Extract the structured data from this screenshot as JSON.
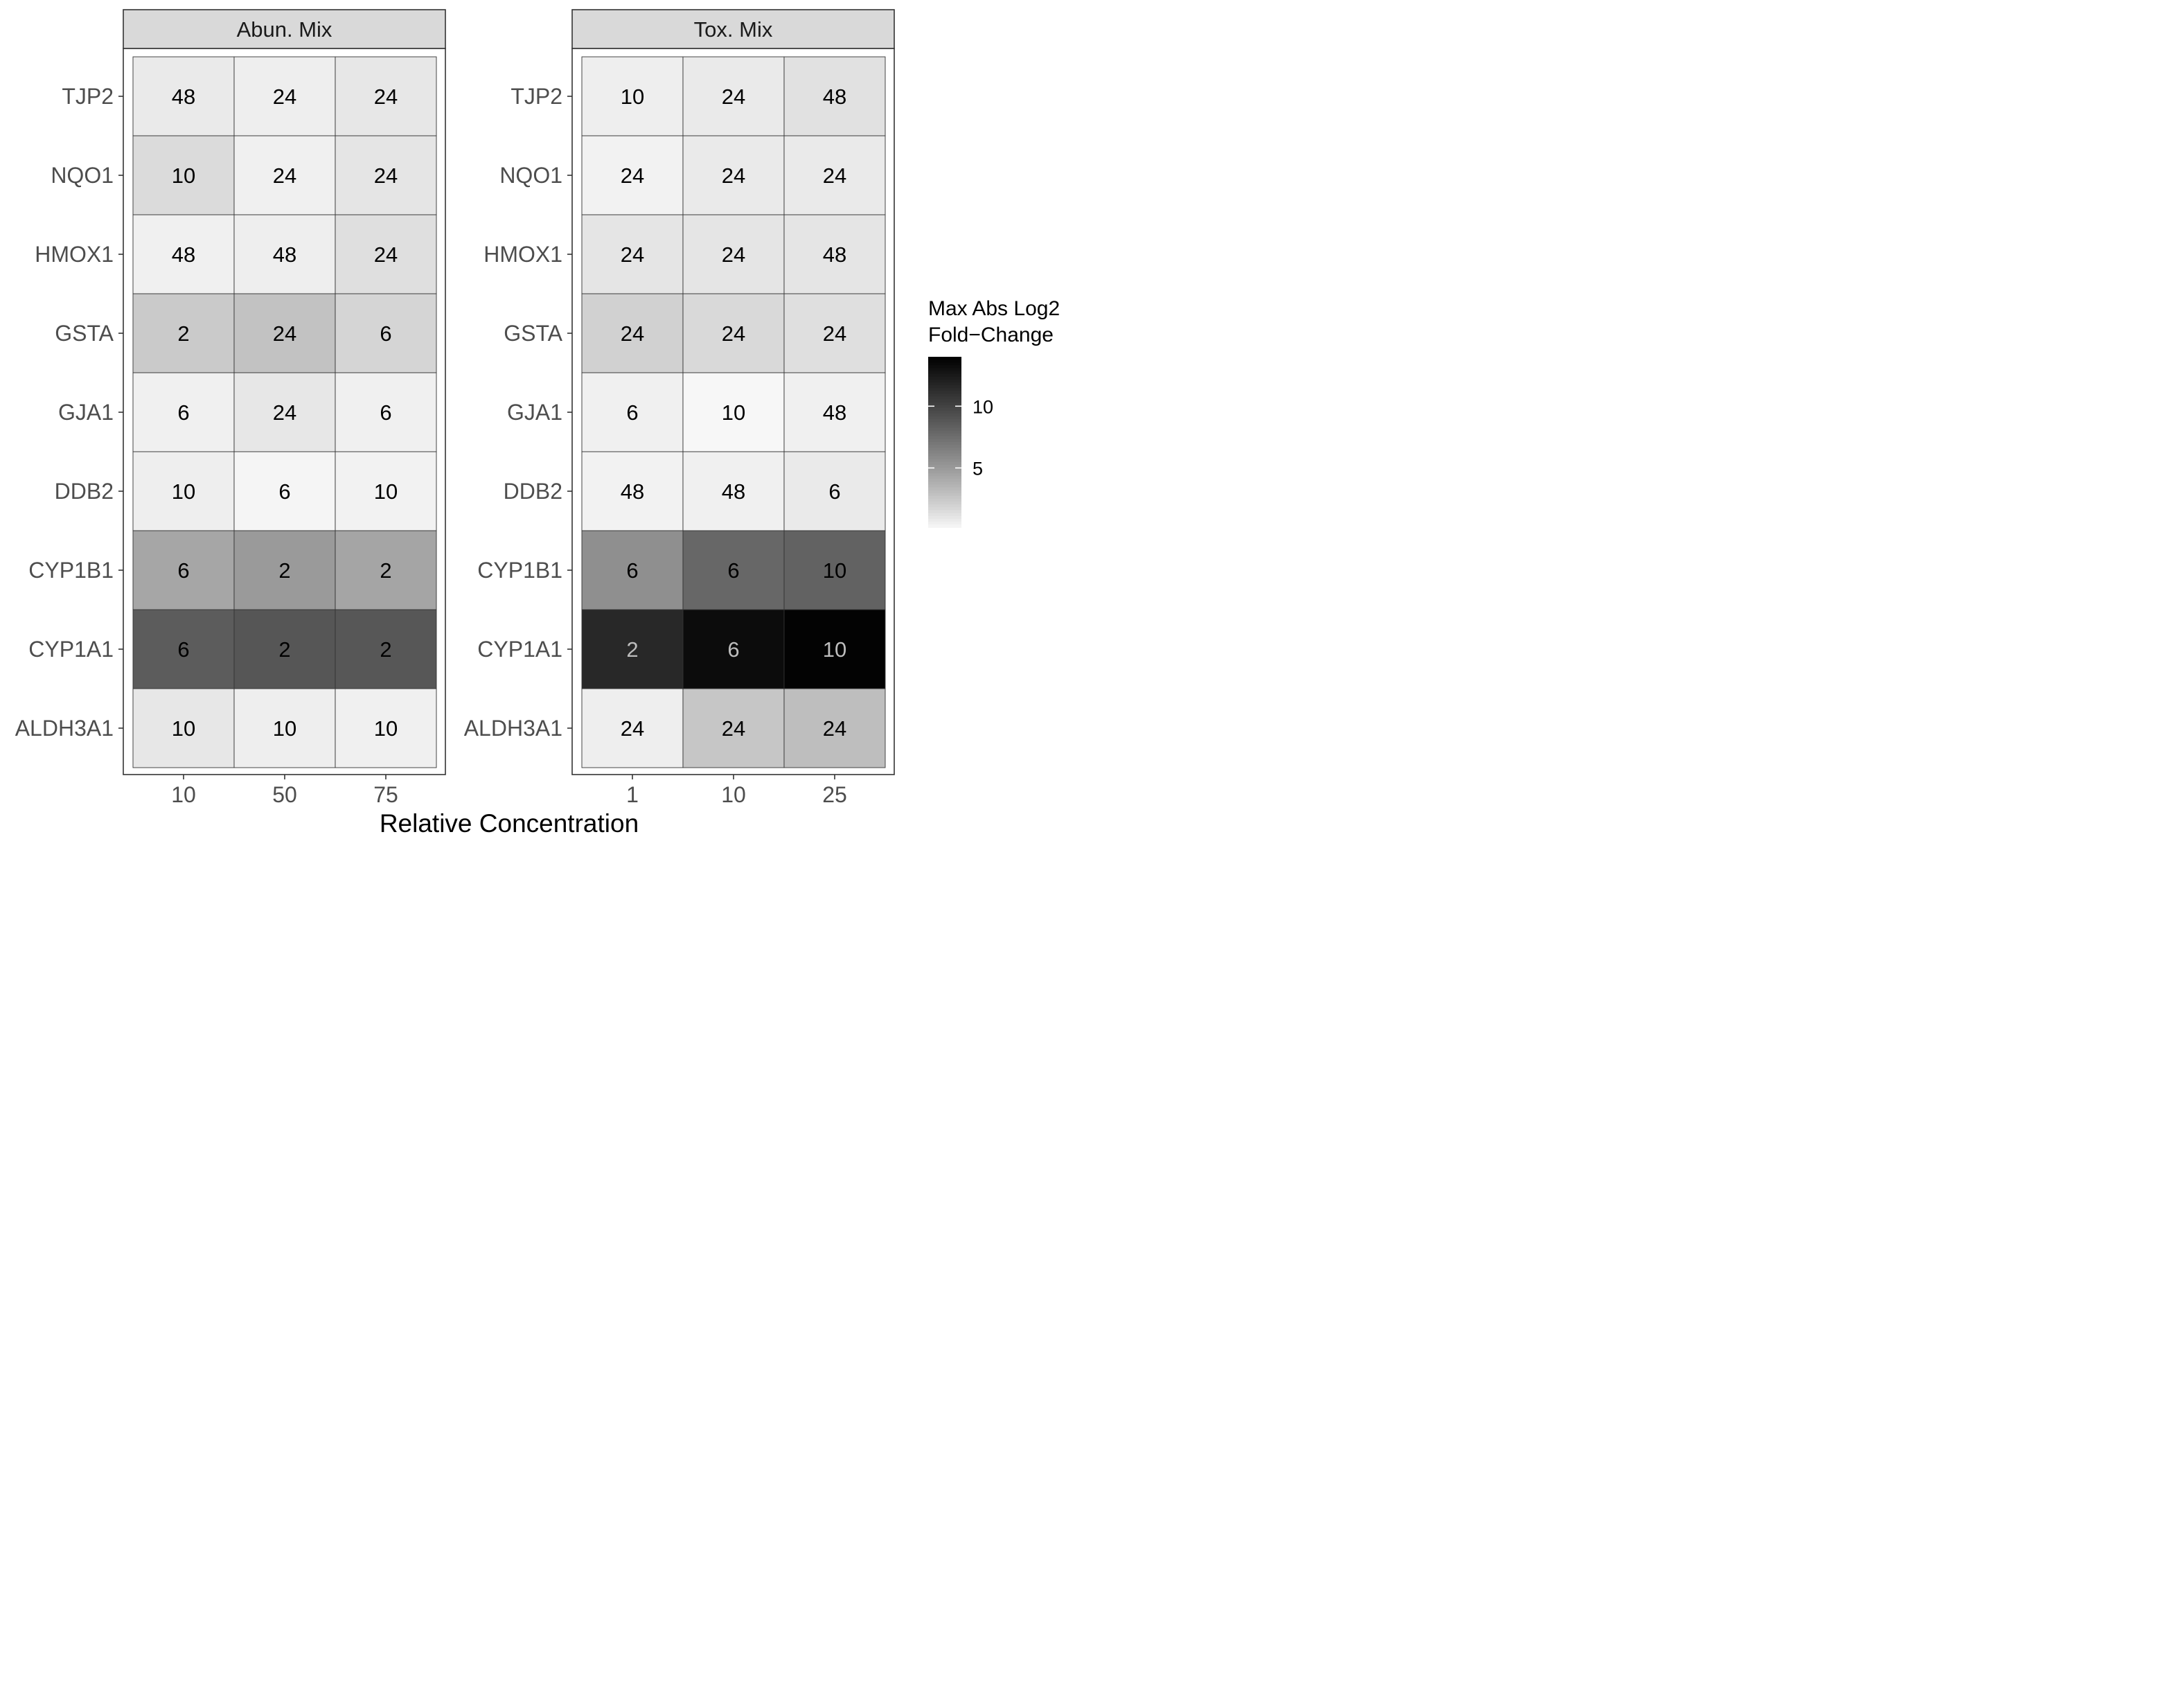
{
  "chart_data": {
    "type": "heatmap",
    "xlabel": "Relative Concentration",
    "rows": [
      "TJP2",
      "NQO1",
      "HMOX1",
      "GSTA",
      "GJA1",
      "DDB2",
      "CYP1B1",
      "CYP1A1",
      "ALDH3A1"
    ],
    "panels": [
      {
        "title": "Abun. Mix",
        "columns": [
          "10",
          "50",
          "75"
        ],
        "fill_values": [
          [
            0.8,
            0.6,
            0.9
          ],
          [
            1.5,
            0.5,
            1.0
          ],
          [
            0.5,
            0.6,
            1.3
          ],
          [
            2.4,
            2.8,
            1.8
          ],
          [
            0.5,
            0.9,
            0.5
          ],
          [
            0.6,
            0.3,
            0.4
          ],
          [
            4.3,
            5.0,
            4.4
          ],
          [
            8.5,
            8.9,
            8.8
          ],
          [
            0.9,
            0.6,
            0.5
          ]
        ],
        "cell_labels": [
          [
            "48",
            "24",
            "24"
          ],
          [
            "10",
            "24",
            "24"
          ],
          [
            "48",
            "48",
            "24"
          ],
          [
            "2",
            "24",
            "6"
          ],
          [
            "6",
            "24",
            "6"
          ],
          [
            "10",
            "6",
            "10"
          ],
          [
            "6",
            "2",
            "2"
          ],
          [
            "6",
            "2",
            "2"
          ],
          [
            "10",
            "10",
            "10"
          ]
        ]
      },
      {
        "title": "Tox. Mix",
        "columns": [
          "1",
          "10",
          "25"
        ],
        "fill_values": [
          [
            0.6,
            0.8,
            1.2
          ],
          [
            0.4,
            0.8,
            0.8
          ],
          [
            1.0,
            1.0,
            1.0
          ],
          [
            2.0,
            1.6,
            1.3
          ],
          [
            0.5,
            0.2,
            0.5
          ],
          [
            0.4,
            0.5,
            0.8
          ],
          [
            5.6,
            7.9,
            8.2
          ],
          [
            11.6,
            13.3,
            13.8
          ],
          [
            0.6,
            2.6,
            3.0
          ]
        ],
        "cell_labels": [
          [
            "10",
            "24",
            "48"
          ],
          [
            "24",
            "24",
            "24"
          ],
          [
            "24",
            "24",
            "48"
          ],
          [
            "24",
            "24",
            "24"
          ],
          [
            "6",
            "10",
            "48"
          ],
          [
            "48",
            "48",
            "6"
          ],
          [
            "6",
            "6",
            "10"
          ],
          [
            "2",
            "6",
            "10"
          ],
          [
            "24",
            "24",
            "24"
          ]
        ]
      }
    ],
    "legend": {
      "title_lines": [
        "Max Abs Log2",
        "Fold−Change"
      ],
      "ticks": [
        5,
        10
      ],
      "tick_labels": [
        "5",
        "10"
      ],
      "range": [
        0.2,
        14
      ],
      "low_color": "#ffffff",
      "high_color": "#000000",
      "placement": "right"
    },
    "grid": false
  }
}
